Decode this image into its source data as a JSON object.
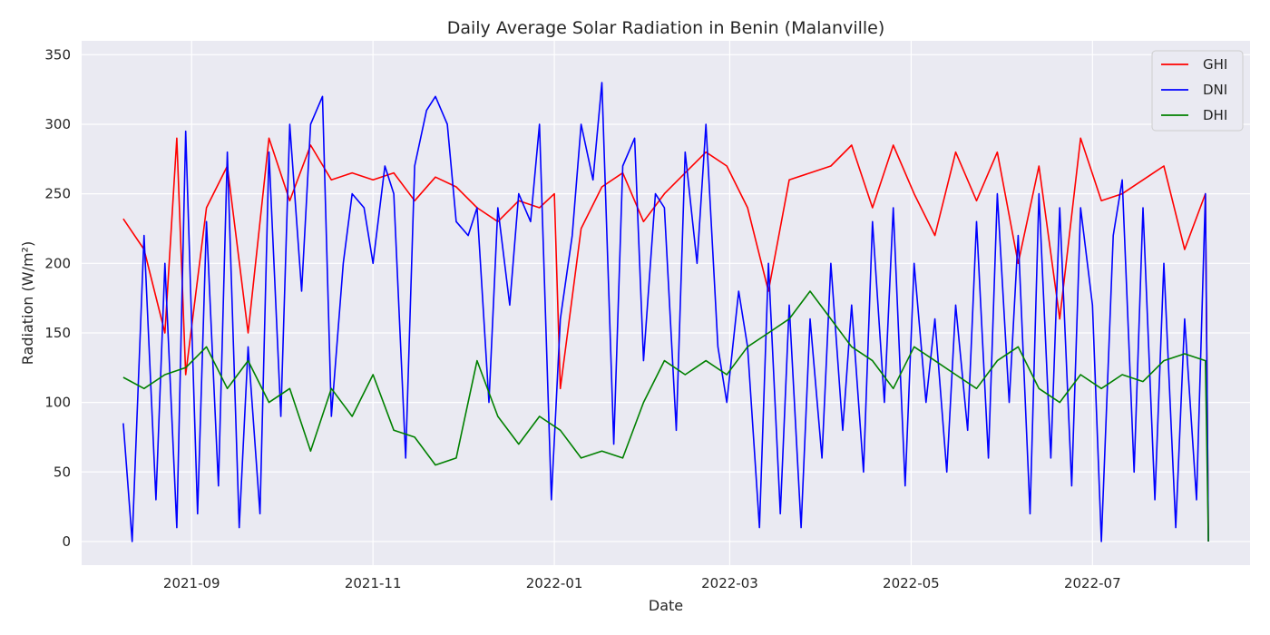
{
  "chart_data": {
    "type": "line",
    "title": "Daily Average Solar Radiation in Benin (Malanville)",
    "xlabel": "Date",
    "ylabel": "Radiation (W/m²)",
    "x_start": "2021-08-09",
    "x_end": "2022-08-09",
    "xlim": [
      "2021-07-26",
      "2022-08-23"
    ],
    "ylim": [
      -17,
      360
    ],
    "x_ticks": [
      "2021-09",
      "2021-11",
      "2022-01",
      "2022-03",
      "2022-05",
      "2022-07"
    ],
    "x_tick_dates": [
      "2021-09-01",
      "2021-11-01",
      "2022-01-01",
      "2022-03-01",
      "2022-05-01",
      "2022-07-01"
    ],
    "y_ticks": [
      0,
      50,
      100,
      150,
      200,
      250,
      300,
      350
    ],
    "grid": true,
    "legend_position": "top-right",
    "series": [
      {
        "name": "GHI",
        "color": "#ff0000",
        "x": [
          "2021-08-09",
          "2021-08-16",
          "2021-08-23",
          "2021-08-27",
          "2021-08-30",
          "2021-09-06",
          "2021-09-13",
          "2021-09-20",
          "2021-09-27",
          "2021-10-04",
          "2021-10-11",
          "2021-10-18",
          "2021-10-25",
          "2021-11-01",
          "2021-11-08",
          "2021-11-15",
          "2021-11-22",
          "2021-11-29",
          "2021-12-06",
          "2021-12-13",
          "2021-12-20",
          "2021-12-27",
          "2022-01-01",
          "2022-01-03",
          "2022-01-10",
          "2022-01-17",
          "2022-01-24",
          "2022-01-31",
          "2022-02-07",
          "2022-02-14",
          "2022-02-21",
          "2022-02-28",
          "2022-03-07",
          "2022-03-14",
          "2022-03-21",
          "2022-03-28",
          "2022-04-04",
          "2022-04-11",
          "2022-04-18",
          "2022-04-25",
          "2022-05-02",
          "2022-05-09",
          "2022-05-16",
          "2022-05-23",
          "2022-05-30",
          "2022-06-06",
          "2022-06-13",
          "2022-06-20",
          "2022-06-27",
          "2022-07-04",
          "2022-07-11",
          "2022-07-18",
          "2022-07-25",
          "2022-08-01",
          "2022-08-08",
          "2022-08-09"
        ],
        "values": [
          232,
          210,
          150,
          290,
          120,
          240,
          270,
          150,
          290,
          245,
          285,
          260,
          265,
          260,
          265,
          245,
          262,
          255,
          240,
          230,
          245,
          240,
          250,
          110,
          225,
          255,
          265,
          230,
          250,
          265,
          280,
          270,
          240,
          180,
          260,
          265,
          270,
          285,
          240,
          285,
          250,
          220,
          280,
          245,
          280,
          200,
          270,
          160,
          290,
          245,
          250,
          260,
          270,
          210,
          250,
          0
        ]
      },
      {
        "name": "DNI",
        "color": "#0000ff",
        "x": [
          "2021-08-09",
          "2021-08-12",
          "2021-08-16",
          "2021-08-20",
          "2021-08-23",
          "2021-08-27",
          "2021-08-30",
          "2021-09-03",
          "2021-09-06",
          "2021-09-10",
          "2021-09-13",
          "2021-09-17",
          "2021-09-20",
          "2021-09-24",
          "2021-09-27",
          "2021-10-01",
          "2021-10-04",
          "2021-10-08",
          "2021-10-11",
          "2021-10-15",
          "2021-10-18",
          "2021-10-22",
          "2021-10-25",
          "2021-10-29",
          "2021-11-01",
          "2021-11-05",
          "2021-11-08",
          "2021-11-12",
          "2021-11-15",
          "2021-11-19",
          "2021-11-22",
          "2021-11-26",
          "2021-11-29",
          "2021-12-03",
          "2021-12-06",
          "2021-12-10",
          "2021-12-13",
          "2021-12-17",
          "2021-12-20",
          "2021-12-24",
          "2021-12-27",
          "2021-12-31",
          "2022-01-03",
          "2022-01-07",
          "2022-01-10",
          "2022-01-14",
          "2022-01-17",
          "2022-01-21",
          "2022-01-24",
          "2022-01-28",
          "2022-01-31",
          "2022-02-04",
          "2022-02-07",
          "2022-02-11",
          "2022-02-14",
          "2022-02-18",
          "2022-02-21",
          "2022-02-25",
          "2022-02-28",
          "2022-03-04",
          "2022-03-07",
          "2022-03-11",
          "2022-03-14",
          "2022-03-18",
          "2022-03-21",
          "2022-03-25",
          "2022-03-28",
          "2022-04-01",
          "2022-04-04",
          "2022-04-08",
          "2022-04-11",
          "2022-04-15",
          "2022-04-18",
          "2022-04-22",
          "2022-04-25",
          "2022-04-29",
          "2022-05-02",
          "2022-05-06",
          "2022-05-09",
          "2022-05-13",
          "2022-05-16",
          "2022-05-20",
          "2022-05-23",
          "2022-05-27",
          "2022-05-30",
          "2022-06-03",
          "2022-06-06",
          "2022-06-10",
          "2022-06-13",
          "2022-06-17",
          "2022-06-20",
          "2022-06-24",
          "2022-06-27",
          "2022-07-01",
          "2022-07-04",
          "2022-07-08",
          "2022-07-11",
          "2022-07-15",
          "2022-07-18",
          "2022-07-22",
          "2022-07-25",
          "2022-07-29",
          "2022-08-01",
          "2022-08-05",
          "2022-08-08",
          "2022-08-09"
        ],
        "values": [
          85,
          0,
          220,
          30,
          200,
          10,
          295,
          20,
          230,
          40,
          280,
          10,
          140,
          20,
          280,
          90,
          300,
          180,
          300,
          320,
          90,
          200,
          250,
          240,
          200,
          270,
          250,
          60,
          270,
          310,
          320,
          300,
          230,
          220,
          240,
          100,
          240,
          170,
          250,
          230,
          300,
          30,
          160,
          220,
          300,
          260,
          330,
          70,
          270,
          290,
          130,
          250,
          240,
          80,
          280,
          200,
          300,
          140,
          100,
          180,
          140,
          10,
          200,
          20,
          170,
          10,
          160,
          60,
          200,
          80,
          170,
          50,
          230,
          100,
          240,
          40,
          200,
          100,
          160,
          50,
          170,
          80,
          230,
          60,
          250,
          100,
          220,
          20,
          250,
          60,
          240,
          40,
          240,
          170,
          0,
          220,
          260,
          50,
          240,
          30,
          200,
          10,
          160,
          30,
          250,
          0
        ]
      },
      {
        "name": "DHI",
        "color": "#008000",
        "x": [
          "2021-08-09",
          "2021-08-16",
          "2021-08-23",
          "2021-08-30",
          "2021-09-06",
          "2021-09-13",
          "2021-09-20",
          "2021-09-27",
          "2021-10-04",
          "2021-10-11",
          "2021-10-18",
          "2021-10-25",
          "2021-11-01",
          "2021-11-08",
          "2021-11-15",
          "2021-11-22",
          "2021-11-29",
          "2021-12-06",
          "2021-12-13",
          "2021-12-20",
          "2021-12-27",
          "2022-01-03",
          "2022-01-10",
          "2022-01-17",
          "2022-01-24",
          "2022-01-31",
          "2022-02-07",
          "2022-02-14",
          "2022-02-21",
          "2022-02-28",
          "2022-03-07",
          "2022-03-14",
          "2022-03-21",
          "2022-03-28",
          "2022-04-04",
          "2022-04-11",
          "2022-04-18",
          "2022-04-25",
          "2022-05-02",
          "2022-05-09",
          "2022-05-16",
          "2022-05-23",
          "2022-05-30",
          "2022-06-06",
          "2022-06-13",
          "2022-06-20",
          "2022-06-27",
          "2022-07-04",
          "2022-07-11",
          "2022-07-18",
          "2022-07-25",
          "2022-08-01",
          "2022-08-08",
          "2022-08-09"
        ],
        "values": [
          118,
          110,
          120,
          125,
          140,
          110,
          130,
          100,
          110,
          65,
          110,
          90,
          120,
          80,
          75,
          55,
          60,
          130,
          90,
          70,
          90,
          80,
          60,
          65,
          60,
          100,
          130,
          120,
          130,
          120,
          140,
          150,
          160,
          180,
          160,
          140,
          130,
          110,
          140,
          130,
          120,
          110,
          130,
          140,
          110,
          100,
          120,
          110,
          120,
          115,
          130,
          135,
          130,
          0
        ]
      }
    ]
  }
}
